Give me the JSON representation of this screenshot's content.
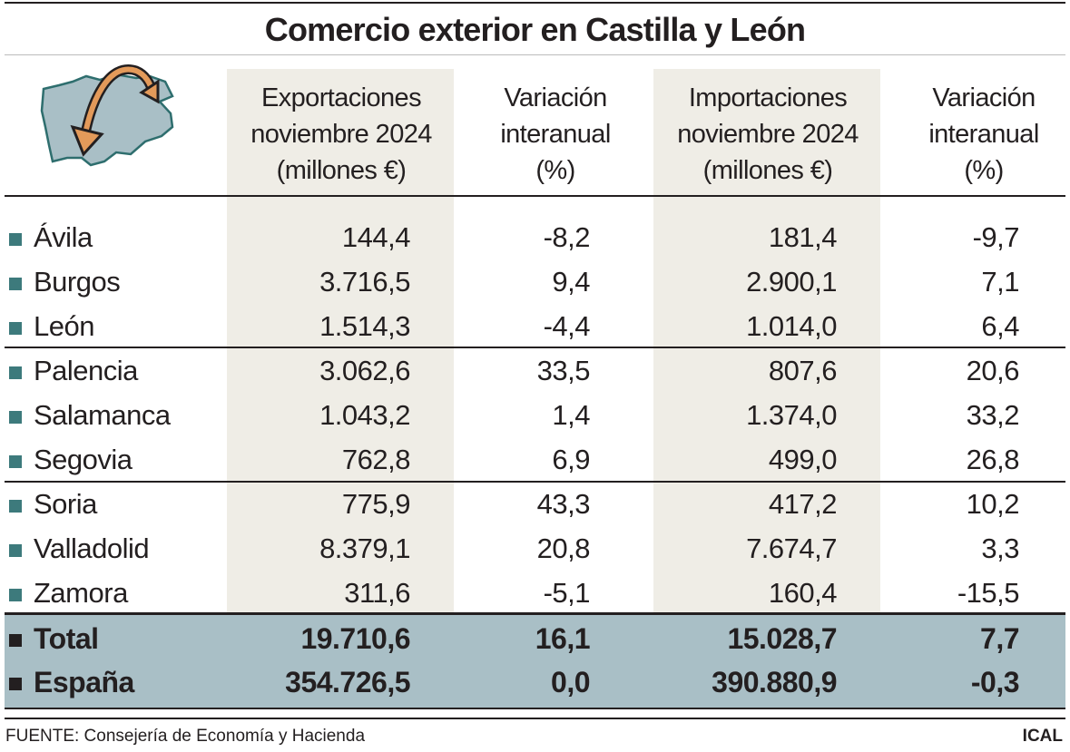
{
  "title": "Comercio exterior en Castilla y León",
  "icon": "castilla-leon-map-with-arrow-icon",
  "colors": {
    "shade": "#efede6",
    "band": "#a9bfc6",
    "bullet": "#3d7a7c",
    "text": "#231f20",
    "map": "#a9bfc6",
    "arrow": "#e39a5a"
  },
  "headers": [
    [
      "Exportaciones",
      "noviembre 2024",
      "(millones €)"
    ],
    [
      "Variación",
      "interanual",
      "(%)"
    ],
    [
      "Importaciones",
      "noviembre 2024",
      "(millones €)"
    ],
    [
      "Variación",
      "interanual",
      "(%)"
    ]
  ],
  "chart_data": {
    "type": "table",
    "title": "Comercio exterior en Castilla y León",
    "columns": [
      "Exportaciones noviembre 2024 (millones €)",
      "Variación interanual (%)",
      "Importaciones noviembre 2024 (millones €)",
      "Variación interanual (%)"
    ],
    "rows": [
      {
        "name": "Ávila",
        "values": [
          "144,4",
          "-8,2",
          "181,4",
          "-9,7"
        ]
      },
      {
        "name": "Burgos",
        "values": [
          "3.716,5",
          "9,4",
          "2.900,1",
          "7,1"
        ]
      },
      {
        "name": "León",
        "values": [
          "1.514,3",
          "-4,4",
          "1.014,0",
          "6,4"
        ]
      },
      {
        "name": "Palencia",
        "values": [
          "3.062,6",
          "33,5",
          "807,6",
          "20,6"
        ]
      },
      {
        "name": "Salamanca",
        "values": [
          "1.043,2",
          "1,4",
          "1.374,0",
          "33,2"
        ]
      },
      {
        "name": "Segovia",
        "values": [
          "762,8",
          "6,9",
          "499,0",
          "26,8"
        ]
      },
      {
        "name": "Soria",
        "values": [
          "775,9",
          "43,3",
          "417,2",
          "10,2"
        ]
      },
      {
        "name": "Valladolid",
        "values": [
          "8.379,1",
          "20,8",
          "7.674,7",
          "3,3"
        ]
      },
      {
        "name": "Zamora",
        "values": [
          "311,6",
          "-5,1",
          "160,4",
          "-15,5"
        ]
      }
    ],
    "totals": [
      {
        "name": "Total",
        "values": [
          "19.710,6",
          "16,1",
          "15.028,7",
          "7,7"
        ]
      },
      {
        "name": "España",
        "values": [
          "354.726,5",
          "0,0",
          "390.880,9",
          "-0,3"
        ]
      }
    ]
  },
  "footer": {
    "source": "FUENTE: Consejería de Economía y Hacienda",
    "brand": "ICAL"
  }
}
